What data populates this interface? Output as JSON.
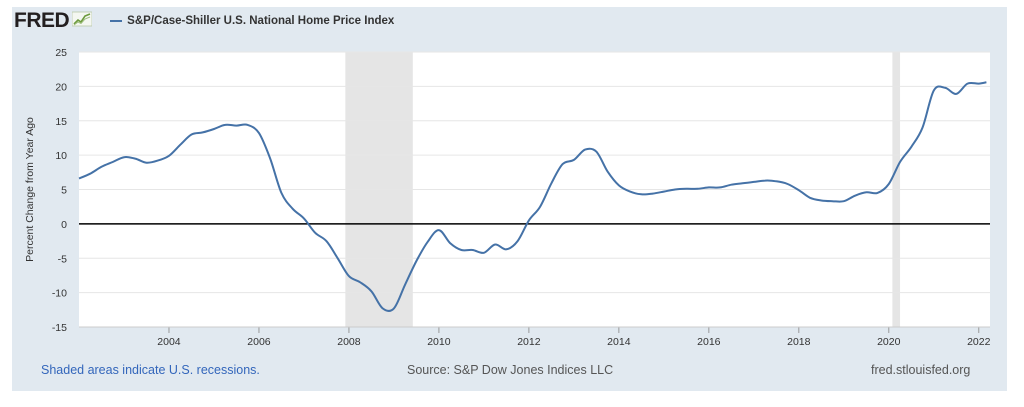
{
  "header": {
    "logo_text": "FRED",
    "logo_icon": "line-graph-icon",
    "series_color": "#4572a7"
  },
  "footer": {
    "recession_note": "Shaded areas indicate U.S. recessions.",
    "source": "Source: S&P Dow Jones Indices LLC",
    "site": "fred.stlouisfed.org"
  },
  "chart_data": {
    "type": "line",
    "title": "",
    "xlabel": "",
    "ylabel": "Percent Change from Year Ago",
    "ylim": [
      -15,
      25
    ],
    "xlim": [
      2002.0,
      2022.25
    ],
    "yticks": [
      -15,
      -10,
      -5,
      0,
      5,
      10,
      15,
      20,
      25
    ],
    "xticks": [
      "2004",
      "2006",
      "2008",
      "2010",
      "2012",
      "2014",
      "2016",
      "2018",
      "2020",
      "2022"
    ],
    "grid": true,
    "legend": "top-left",
    "zero_line": true,
    "recessions": [
      [
        2007.92,
        2009.42
      ],
      [
        2020.08,
        2020.25
      ]
    ],
    "series": [
      {
        "name": "S&P/Case-Shiller U.S. National Home Price Index",
        "color": "#4572a7",
        "x": [
          2002.0,
          2002.25,
          2002.5,
          2002.75,
          2003.0,
          2003.25,
          2003.5,
          2003.75,
          2004.0,
          2004.25,
          2004.5,
          2004.75,
          2005.0,
          2005.25,
          2005.5,
          2005.75,
          2006.0,
          2006.25,
          2006.5,
          2006.75,
          2007.0,
          2007.25,
          2007.5,
          2007.75,
          2008.0,
          2008.25,
          2008.5,
          2008.75,
          2009.0,
          2009.25,
          2009.5,
          2009.75,
          2010.0,
          2010.25,
          2010.5,
          2010.75,
          2011.0,
          2011.25,
          2011.5,
          2011.75,
          2012.0,
          2012.25,
          2012.5,
          2012.75,
          2013.0,
          2013.25,
          2013.5,
          2013.75,
          2014.0,
          2014.25,
          2014.5,
          2014.75,
          2015.0,
          2015.25,
          2015.5,
          2015.75,
          2016.0,
          2016.25,
          2016.5,
          2016.75,
          2017.0,
          2017.25,
          2017.5,
          2017.75,
          2018.0,
          2018.25,
          2018.5,
          2018.75,
          2019.0,
          2019.25,
          2019.5,
          2019.75,
          2020.0,
          2020.25,
          2020.5,
          2020.75,
          2021.0,
          2021.25,
          2021.5,
          2021.75,
          2022.0,
          2022.17
        ],
        "values": [
          6.6,
          7.3,
          8.3,
          9.0,
          9.7,
          9.5,
          8.9,
          9.2,
          9.9,
          11.5,
          13.0,
          13.3,
          13.8,
          14.4,
          14.3,
          14.4,
          13.2,
          9.5,
          4.5,
          2.2,
          0.8,
          -1.3,
          -2.5,
          -5.0,
          -7.6,
          -8.5,
          -9.8,
          -12.3,
          -12.3,
          -8.8,
          -5.4,
          -2.6,
          -0.9,
          -2.8,
          -3.8,
          -3.8,
          -4.2,
          -3.0,
          -3.7,
          -2.5,
          0.5,
          2.5,
          5.9,
          8.7,
          9.3,
          10.8,
          10.5,
          7.6,
          5.6,
          4.7,
          4.3,
          4.4,
          4.7,
          5.0,
          5.1,
          5.1,
          5.3,
          5.3,
          5.7,
          5.9,
          6.1,
          6.3,
          6.2,
          5.8,
          4.9,
          3.8,
          3.4,
          3.3,
          3.3,
          4.1,
          4.6,
          4.5,
          5.8,
          9.0,
          11.2,
          14.0,
          19.4,
          19.8,
          18.9,
          20.4,
          20.4,
          20.6
        ]
      }
    ]
  }
}
